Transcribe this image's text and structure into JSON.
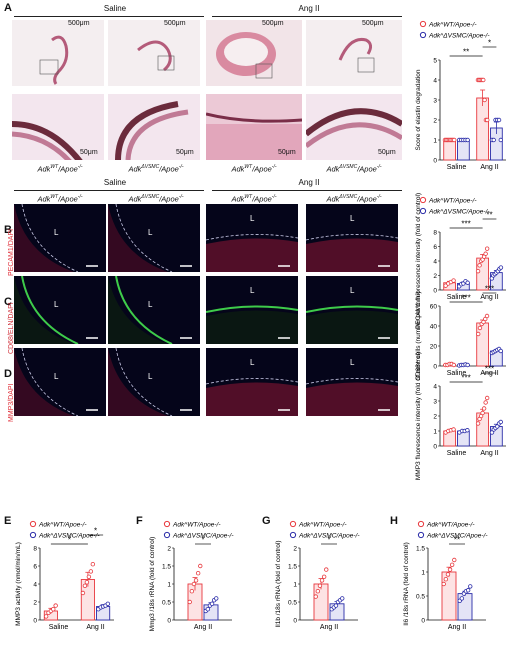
{
  "panels": {
    "A": {
      "label": "A",
      "groups": [
        "Saline",
        "Ang II"
      ],
      "scale_top": "500μm",
      "scale_bottom": "50μm",
      "genotypes": [
        "Adk",
        "WT",
        "/Apoe",
        "-/-",
        "Adk",
        "ΔVSMC",
        "/Apoe",
        "-/-"
      ]
    },
    "B": {
      "label": "B",
      "stain": "PECAM1/DAPI"
    },
    "C": {
      "label": "C",
      "stain": "CD68/ELN/DAPI"
    },
    "D": {
      "label": "D",
      "stain": "MMP3/DAPI"
    },
    "E": {
      "label": "E"
    },
    "F": {
      "label": "F"
    },
    "G": {
      "label": "G"
    },
    "H": {
      "label": "H"
    },
    "lumen_mark": "L",
    "colors": {
      "wt": "#e8383d",
      "ko": "#2a2ca8"
    }
  },
  "chart_data": [
    {
      "id": "A-elastin",
      "type": "bar",
      "categories": [
        "Saline",
        "Ang II"
      ],
      "ylabel": "Score of elastin degradation",
      "ylim": [
        0,
        5
      ],
      "yticks": [
        0,
        1,
        2,
        3,
        4,
        5
      ],
      "series": [
        {
          "name": "Adk^WT/Apoe-/-",
          "values": [
            1.0,
            3.1
          ],
          "err": [
            0,
            0.4
          ],
          "points": [
            [
              1,
              1,
              1,
              1,
              1,
              1,
              1,
              1
            ],
            [
              4,
              4,
              4,
              4,
              4,
              3,
              2,
              2
            ]
          ]
        },
        {
          "name": "Adk^ΔVSMC/Apoe-/-",
          "values": [
            1.0,
            1.6
          ],
          "err": [
            0,
            0.3
          ],
          "points": [
            [
              1,
              1,
              1,
              1,
              1
            ],
            [
              1,
              1,
              2,
              2,
              2,
              1
            ]
          ]
        }
      ],
      "significance": [
        {
          "text": "**",
          "between": [
            [
              0,
              0
            ],
            [
              1,
              0
            ]
          ]
        },
        {
          "text": "*",
          "between": [
            [
              1,
              0
            ],
            [
              1,
              1
            ]
          ]
        }
      ],
      "legend": [
        "Adk^WT/Apoe-/-",
        "Adk^ΔVSMC/Apoe-/-"
      ]
    },
    {
      "id": "B-pecam1",
      "type": "bar",
      "categories": [
        "Saline",
        "Ang II"
      ],
      "ylabel": "PECAM1 fluorescence intensity (fold of control)",
      "ylim": [
        0,
        8
      ],
      "yticks": [
        0,
        2,
        4,
        6,
        8
      ],
      "series": [
        {
          "name": "Adk^WT/Apoe-/-",
          "values": [
            1.0,
            4.4
          ],
          "err": [
            0.2,
            0.5
          ],
          "points": [
            [
              0.6,
              0.9,
              1.1,
              1.3
            ],
            [
              2.6,
              3.4,
              4.0,
              4.2,
              4.6,
              5.0,
              5.7
            ]
          ]
        },
        {
          "name": "Adk^ΔVSMC/Apoe-/-",
          "values": [
            0.9,
            2.4
          ],
          "err": [
            0.2,
            0.3
          ],
          "points": [
            [
              0.5,
              0.8,
              0.9,
              1.2,
              1.0
            ],
            [
              1.6,
              2.0,
              2.2,
              2.4,
              2.6,
              2.9,
              3.1
            ]
          ]
        }
      ],
      "significance": [
        {
          "text": "***",
          "between": [
            [
              0,
              0
            ],
            [
              1,
              0
            ]
          ]
        },
        {
          "text": "**",
          "between": [
            [
              1,
              0
            ],
            [
              1,
              1
            ]
          ]
        }
      ],
      "legend": [
        "Adk^WT/Apoe-/-",
        "Adk^ΔVSMC/Apoe-/-"
      ]
    },
    {
      "id": "C-cd68",
      "type": "bar",
      "categories": [
        "Saline",
        "Ang II"
      ],
      "ylabel": "CD68+ cells (number per mm²)",
      "ylim": [
        0,
        60
      ],
      "yticks": [
        0,
        20,
        40,
        60
      ],
      "series": [
        {
          "name": "Adk^WT/Apoe-/-",
          "values": [
            1.5,
            43
          ],
          "err": [
            0.5,
            3
          ],
          "points": [
            [
              1,
              1,
              2,
              2,
              1
            ],
            [
              32,
              38,
              42,
              44,
              47,
              50
            ]
          ]
        },
        {
          "name": "Adk^ΔVSMC/Apoe-/-",
          "values": [
            1.0,
            15
          ],
          "err": [
            0.3,
            1.5
          ],
          "points": [
            [
              0.5,
              1,
              1,
              1.5,
              1
            ],
            [
              13,
              14,
              15,
              16,
              17,
              15
            ]
          ]
        }
      ],
      "significance": [
        {
          "text": "***",
          "between": [
            [
              0,
              0
            ],
            [
              1,
              0
            ]
          ]
        },
        {
          "text": "***",
          "between": [
            [
              1,
              0
            ],
            [
              1,
              1
            ]
          ]
        }
      ],
      "legend": []
    },
    {
      "id": "D-mmp3",
      "type": "bar",
      "categories": [
        "Saline",
        "Ang II"
      ],
      "ylabel": "MMP3 fluorescence intensity (fold of control)",
      "ylim": [
        0,
        4
      ],
      "yticks": [
        0,
        1,
        2,
        3,
        4
      ],
      "series": [
        {
          "name": "Adk^WT/Apoe-/-",
          "values": [
            1.0,
            2.2
          ],
          "err": [
            0.05,
            0.25
          ],
          "points": [
            [
              0.9,
              1.0,
              1.05,
              1.1
            ],
            [
              1.5,
              1.8,
              2.0,
              2.2,
              2.5,
              2.9,
              3.2
            ]
          ]
        },
        {
          "name": "Adk^ΔVSMC/Apoe-/-",
          "values": [
            1.0,
            1.3
          ],
          "err": [
            0.05,
            0.15
          ],
          "points": [
            [
              0.9,
              1.0,
              1.0,
              1.05
            ],
            [
              0.9,
              1.1,
              1.2,
              1.3,
              1.5,
              1.6
            ]
          ]
        }
      ],
      "significance": [
        {
          "text": "***",
          "between": [
            [
              0,
              0
            ],
            [
              1,
              0
            ]
          ]
        },
        {
          "text": "***",
          "between": [
            [
              1,
              0
            ],
            [
              1,
              1
            ]
          ]
        }
      ],
      "legend": [
        "Adk^WT/Apoe-/-",
        "Adk^ΔVSMC/Apoe-/-"
      ]
    },
    {
      "id": "E-mmp3-activity",
      "type": "bar",
      "categories": [
        "Saline",
        "Ang II"
      ],
      "ylabel": "MMP3 activity (nmol/min/mL)",
      "ylim": [
        0,
        8
      ],
      "yticks": [
        0,
        2,
        4,
        6,
        8
      ],
      "series": [
        {
          "name": "Adk^WT/Apoe-/-",
          "values": [
            1.0,
            4.5
          ],
          "err": [
            0.3,
            0.8
          ],
          "points": [
            [
              0.4,
              0.8,
              1.0,
              1.2,
              1.6
            ],
            [
              3.0,
              3.8,
              4.2,
              4.8,
              5.4,
              6.2
            ]
          ]
        },
        {
          "name": "Adk^ΔVSMC/Apoe-/-",
          "values": [
            null,
            1.5
          ],
          "err": [
            null,
            0.2
          ],
          "points": [
            [],
            [
              1.2,
              1.4,
              1.5,
              1.6,
              1.8
            ]
          ]
        }
      ],
      "significance": [
        {
          "text": "*",
          "between": [
            [
              0,
              0
            ],
            [
              1,
              0
            ]
          ]
        },
        {
          "text": "*",
          "between": [
            [
              1,
              0
            ],
            [
              1,
              1
            ]
          ]
        }
      ],
      "legend": [
        "Adk^WT/Apoe-/-",
        "Adk^ΔVSMC/Apoe-/-"
      ]
    },
    {
      "id": "F-mmp3-rna",
      "type": "bar",
      "categories": [
        "Ang II"
      ],
      "ylabel": "Mmp3 /18s rRNA (fold of control)",
      "ylim": [
        0,
        2.0
      ],
      "yticks": [
        0,
        0.5,
        1.0,
        1.5,
        2.0
      ],
      "series": [
        {
          "name": "Adk^WT/Apoe-/-",
          "values": [
            1.0
          ],
          "err": [
            0.18
          ],
          "points": [
            [
              0.5,
              0.8,
              1.0,
              1.1,
              1.3,
              1.5
            ]
          ]
        },
        {
          "name": "Adk^ΔVSMC/Apoe-/-",
          "values": [
            0.42
          ],
          "err": [
            0.06
          ],
          "points": [
            [
              0.25,
              0.3,
              0.4,
              0.45,
              0.55,
              0.6
            ]
          ]
        }
      ],
      "significance": [
        {
          "text": "*",
          "between": [
            [
              0,
              0
            ],
            [
              0,
              1
            ]
          ]
        }
      ],
      "legend": [
        "Adk^WT/Apoe-/-",
        "Adk^ΔVSMC/Apoe-/-"
      ]
    },
    {
      "id": "G-il1b-rna",
      "type": "bar",
      "categories": [
        "Ang II"
      ],
      "ylabel": "Il1b /18s rRNA (fold of control)",
      "ylim": [
        0,
        2.0
      ],
      "yticks": [
        0,
        0.5,
        1.0,
        1.5,
        2.0
      ],
      "series": [
        {
          "name": "Adk^WT/Apoe-/-",
          "values": [
            1.0
          ],
          "err": [
            0.15
          ],
          "points": [
            [
              0.65,
              0.8,
              0.95,
              1.1,
              1.2,
              1.4
            ]
          ]
        },
        {
          "name": "Adk^ΔVSMC/Apoe-/-",
          "values": [
            0.45
          ],
          "err": [
            0.06
          ],
          "points": [
            [
              0.3,
              0.35,
              0.4,
              0.5,
              0.55,
              0.6
            ]
          ]
        }
      ],
      "significance": [
        {
          "text": "*",
          "between": [
            [
              0,
              0
            ],
            [
              0,
              1
            ]
          ]
        }
      ],
      "legend": [
        "Adk^WT/Apoe-/-",
        "Adk^ΔVSMC/Apoe-/-"
      ]
    },
    {
      "id": "H-il6-rna",
      "type": "bar",
      "categories": [
        "Ang II"
      ],
      "ylabel": "Il6 /18s rRNA (fold of control)",
      "ylim": [
        0,
        1.5
      ],
      "yticks": [
        0,
        0.5,
        1.0,
        1.5
      ],
      "series": [
        {
          "name": "Adk^WT/Apoe-/-",
          "values": [
            1.0
          ],
          "err": [
            0.1
          ],
          "points": [
            [
              0.75,
              0.85,
              0.95,
              1.05,
              1.15,
              1.25
            ]
          ]
        },
        {
          "name": "Adk^ΔVSMC/Apoe-/-",
          "values": [
            0.55
          ],
          "err": [
            0.05
          ],
          "points": [
            [
              0.4,
              0.45,
              0.55,
              0.6,
              0.62,
              0.7
            ]
          ]
        }
      ],
      "significance": [
        {
          "text": "**",
          "between": [
            [
              0,
              0
            ],
            [
              0,
              1
            ]
          ]
        }
      ],
      "legend": [
        "Adk^WT/Apoe-/-",
        "Adk^ΔVSMC/Apoe-/-"
      ]
    }
  ]
}
